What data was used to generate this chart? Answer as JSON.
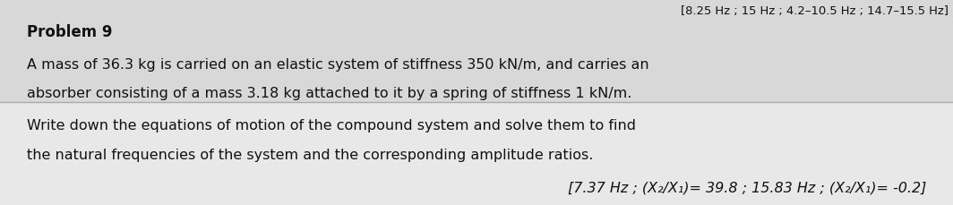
{
  "background_color": "#e0e0e0",
  "upper_bg": "#d8d8d8",
  "lower_bg": "#e8e8e8",
  "top_text": "[8.25 Hz ; 15 Hz ; 4.2–10.5 Hz ; 14.7–15.5 Hz]",
  "title": "Problem 9",
  "paragraph1_line1": "A mass of 36.3 kg is carried on an elastic system of stiffness 350 kN/m, and carries an",
  "paragraph1_line2": "absorber consisting of a mass 3.18 kg attached to it by a spring of stiffness 1 kN/m.",
  "paragraph2_line1": "Write down the equations of motion of the compound system and solve them to find",
  "paragraph2_line2": "the natural frequencies of the system and the corresponding amplitude ratios.",
  "answer_line": "[7.37 Hz ; (X₂/X₁)= 39.8 ; 15.83 Hz ; (X₂/X₁)= -0.2]",
  "title_fontsize": 12,
  "body_fontsize": 11.5,
  "answer_fontsize": 11.5,
  "text_color": "#111111",
  "fig_width": 10.64,
  "fig_height": 2.3,
  "dpi": 100
}
